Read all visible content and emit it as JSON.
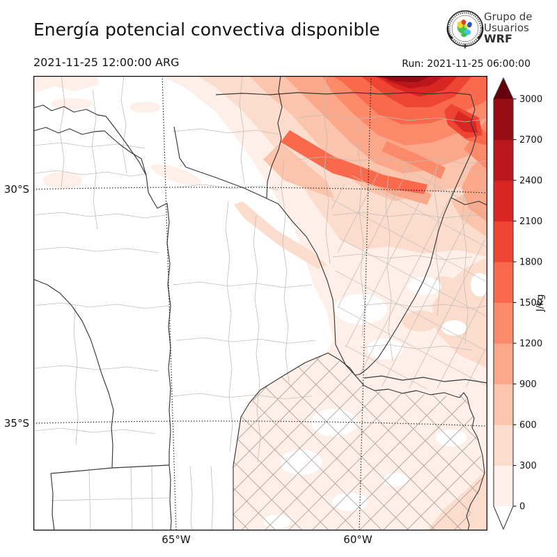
{
  "header": {
    "title": "Energía potencial convectiva disponible",
    "valid_time": "2021-11-25 12:00:00 ARG",
    "run_label": "Run: 2021-11-25 06:00:00"
  },
  "logo": {
    "line1": "Grupo de",
    "line2": "Usuarios",
    "line3": "WRF"
  },
  "map": {
    "lat_labels": [
      {
        "text": "30°S"
      },
      {
        "text": "35°S"
      }
    ],
    "lon_labels": [
      {
        "text": "65°W"
      },
      {
        "text": "60°W"
      }
    ]
  },
  "colorbar": {
    "units": "J/kg",
    "ticks": [
      "0",
      "300",
      "600",
      "900",
      "1200",
      "1500",
      "1800",
      "2100",
      "2400",
      "2700",
      "3000"
    ],
    "colors": [
      "#fef0e8",
      "#fcdccc",
      "#fbc4ac",
      "#fba78a",
      "#fb8a6a",
      "#f9694c",
      "#ee4433",
      "#d92623",
      "#bb161b",
      "#970c13"
    ],
    "under_color": "#ffffff",
    "over_color": "#67000d",
    "outline_color": "#3c3c3c"
  },
  "chart_data": {
    "type": "filled_contour_map",
    "variable": "CAPE - Energía potencial convectiva disponible",
    "units": "J/kg",
    "valid_time": "2021-11-25 12:00:00 ARG",
    "run_time": "2021-11-25 06:00:00",
    "source": "Grupo de Usuarios WRF",
    "levels": [
      0,
      300,
      600,
      900,
      1200,
      1500,
      1800,
      2100,
      2400,
      2700,
      3000
    ],
    "palette": [
      "#fef0e8",
      "#fcdccc",
      "#fbc4ac",
      "#fba78a",
      "#fb8a6a",
      "#f9694c",
      "#ee4433",
      "#d92623",
      "#bb161b",
      "#970c13"
    ],
    "colorbar_extend": "both",
    "gridlines": {
      "lats_deg_S": [
        30,
        35
      ],
      "lons_deg_W": [
        65,
        60
      ],
      "style": "dotted"
    },
    "map_region": "central-northern Argentina (~67.5-57.5W, 27-37.5S) with province and department boundaries",
    "field_summary": [
      {
        "region": "northern edge band ~27-28.5S between 63W and 59W",
        "cape_jkg": "1500-3000+ in SW-NE streaks, darkest core >2700 near top edge around 60W"
      },
      {
        "region": "northeast (Corrientes / north Santa Fe)",
        "cape_jkg": "300-1500 decreasing southward and westward"
      },
      {
        "region": "east (Entre Rios, south Santa Fe)",
        "cape_jkg": "0-600 pale shading with scattered white gaps"
      },
      {
        "region": "Buenos Aires province (southeast)",
        "cape_jkg": "0-300 pale pink with white patches"
      },
      {
        "region": "west and center (Cordoba, San Luis, La Pampa, NW provinces)",
        "cape_jkg": "near 0 (white), few faint 0-300 patches far NW corner"
      }
    ]
  }
}
